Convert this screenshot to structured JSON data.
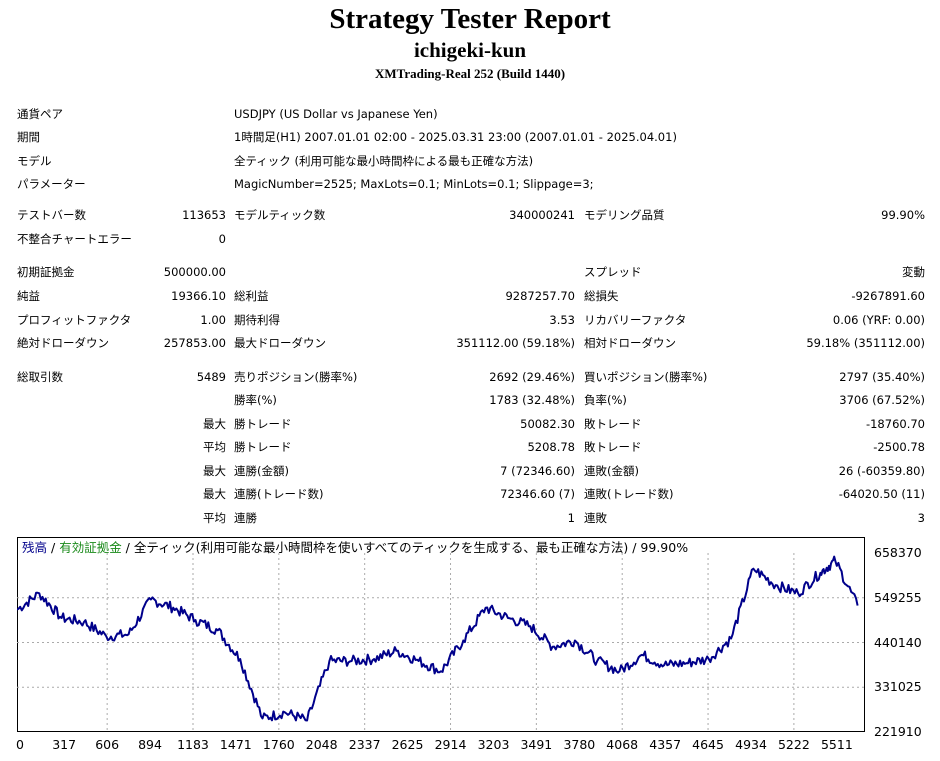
{
  "header": {
    "title": "Strategy Tester Report",
    "ea_name": "ichigeki-kun",
    "server": "XMTrading-Real 252 (Build 1440)"
  },
  "settings": [
    {
      "label": "通貨ペア",
      "value": "USDJPY (US Dollar vs Japanese Yen)"
    },
    {
      "label": "期間",
      "value": "1時間足(H1) 2007.01.01 02:00 - 2025.03.31 23:00 (2007.01.01 - 2025.04.01)"
    },
    {
      "label": "モデル",
      "value": "全ティック (利用可能な最小時間枠による最も正確な方法)"
    },
    {
      "label": "パラメーター",
      "value": "MagicNumber=2525; MaxLots=0.1; MinLots=0.1; Slippage=3;"
    }
  ],
  "stats": {
    "bars_label": "テストバー数",
    "bars": "113653",
    "ticks_label": "モデルティック数",
    "ticks": "340000241",
    "quality_label": "モデリング品質",
    "quality": "99.90%",
    "mismatch_label": "不整合チャートエラー",
    "mismatch": "0",
    "deposit_label": "初期証拠金",
    "deposit": "500000.00",
    "spread_label": "スプレッド",
    "spread": "変動",
    "net_label": "純益",
    "net": "19366.10",
    "gross_profit_label": "総利益",
    "gross_profit": "9287257.70",
    "gross_loss_label": "総損失",
    "gross_loss": "-9267891.60",
    "pf_label": "プロフィットファクタ",
    "pf": "1.00",
    "expected_label": "期待利得",
    "expected": "3.53",
    "recovery_label": "リカバリーファクタ",
    "recovery": "0.06 (YRF: 0.00)",
    "abs_dd_label": "絶対ドローダウン",
    "abs_dd": "257853.00",
    "max_dd_label": "最大ドローダウン",
    "max_dd": "351112.00 (59.18%)",
    "rel_dd_label": "相対ドローダウン",
    "rel_dd": "59.18% (351112.00)",
    "trades_label": "総取引数",
    "trades": "5489",
    "short_label": "売りポジション(勝率%)",
    "short": "2692 (29.46%)",
    "long_label": "買いポジション(勝率%)",
    "long": "2797 (35.40%)",
    "win_pct_label": "勝率(%)",
    "win_pct": "1783 (32.48%)",
    "loss_pct_label": "負率(%)",
    "loss_pct": "3706 (67.52%)",
    "largest_label": "最大",
    "largest_win_label": "勝トレード",
    "largest_win": "50082.30",
    "largest_loss_label": "敗トレード",
    "largest_loss": "-18760.70",
    "average_label": "平均",
    "avg_win_label": "勝トレード",
    "avg_win": "5208.78",
    "avg_loss_label": "敗トレード",
    "avg_loss": "-2500.78",
    "max_label_1": "最大",
    "max_cons_wins_label": "連勝(金額)",
    "max_cons_wins": "7 (72346.60)",
    "max_cons_losses_label": "連敗(金額)",
    "max_cons_losses": "26 (-60359.80)",
    "max_label_2": "最大",
    "max_cons_profit_label": "連勝(トレード数)",
    "max_cons_profit": "72346.60 (7)",
    "max_cons_loss_label": "連敗(トレード数)",
    "max_cons_loss": "-64020.50 (11)",
    "avg_label_2": "平均",
    "avg_cons_wins_label": "連勝",
    "avg_cons_wins": "1",
    "avg_cons_losses_label": "連敗",
    "avg_cons_losses": "3"
  },
  "chart_data": {
    "type": "line",
    "legend": {
      "balance": "残高",
      "sep1": " / ",
      "equity": "有効証拠金",
      "sep2": " / ",
      "desc": "全ティック(利用可能な最小時間枠を使いすべてのティックを生成する、最も正確な方法) / 99.90%"
    },
    "y_ticks": [
      "658370",
      "549255",
      "440140",
      "331025",
      "221910"
    ],
    "x_ticks": [
      "0",
      "317",
      "606",
      "894",
      "1183",
      "1471",
      "1760",
      "2048",
      "2337",
      "2625",
      "2914",
      "3203",
      "3491",
      "3780",
      "4068",
      "4357",
      "4645",
      "4934",
      "5222",
      "5511"
    ],
    "xlim": [
      0,
      5700
    ],
    "ylim": [
      221910,
      658370
    ],
    "line_color": "#00008b",
    "grid": true,
    "series": [
      {
        "x": [
          0,
          150,
          300,
          450,
          600,
          750,
          900,
          1050,
          1200,
          1350,
          1500,
          1650,
          1800,
          1950,
          2100,
          2250,
          2400,
          2550,
          2700,
          2850,
          3000,
          3150,
          3300,
          3450,
          3600,
          3750,
          3900,
          4050,
          4200,
          4350,
          4500,
          4650,
          4800,
          4950,
          5100,
          5250,
          5400,
          5500,
          5650
        ],
        "values": [
          520000,
          560000,
          500000,
          490000,
          455000,
          460000,
          545000,
          525000,
          495000,
          470000,
          400000,
          255000,
          270000,
          250000,
          395000,
          395000,
          400000,
          420000,
          395000,
          370000,
          445000,
          525000,
          500000,
          480000,
          430000,
          445000,
          395000,
          370000,
          410000,
          385000,
          390000,
          400000,
          450000,
          620000,
          580000,
          560000,
          610000,
          640000,
          530000
        ]
      }
    ]
  }
}
